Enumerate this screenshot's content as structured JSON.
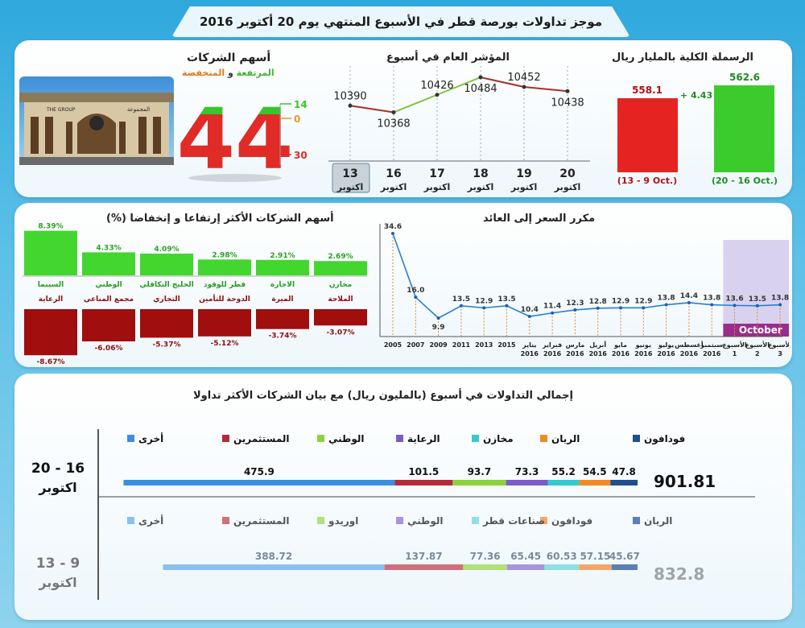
{
  "header": {
    "title": "موجز تداولات بورصة قطر في الأسبوع المنتهي يوم 20 أكتوبر 2016"
  },
  "market_cap": {
    "title": "الرسملة الكلية بالمليار ريال",
    "prev": {
      "value": "558.1",
      "label": "(13 - 9 Oct.)"
    },
    "curr": {
      "value": "562.6",
      "label": "(20 - 16 Oct.)"
    },
    "change": "+ 4.43"
  },
  "index": {
    "title": "المؤشر العام في أسبوع",
    "month": "اكتوبر",
    "days": [
      "13",
      "16",
      "17",
      "18",
      "19",
      "20"
    ],
    "values": [
      "10390",
      "10368",
      "10426",
      "10484",
      "10452",
      "10438"
    ]
  },
  "companies": {
    "title": "أسهم الشركات",
    "subtitle_up": "المرتفعة",
    "subtitle_and": " و ",
    "subtitle_down": "المنخفضة",
    "total": "44",
    "up": "14",
    "flat": "0",
    "down": "30",
    "building_sign": "THE GROUP",
    "building_sign_ar": "المجموعة"
  },
  "movers": {
    "title": "أسهم الشركات الأكثر إرتفاعا و إنخفاضا (%)",
    "gainers": [
      {
        "pct": "8.39%",
        "name": "السينما"
      },
      {
        "pct": "4.33%",
        "name": "الوطني"
      },
      {
        "pct": "4.09%",
        "name": "الخليج التكافلي"
      },
      {
        "pct": "2.98%",
        "name": "قطر للوقود"
      },
      {
        "pct": "2.91%",
        "name": "الاجارة"
      },
      {
        "pct": "2.69%",
        "name": "مخازن"
      }
    ],
    "losers": [
      {
        "pct": "-8.67%",
        "name": "الرعاية"
      },
      {
        "pct": "-6.06%",
        "name": "مجمع المناعي"
      },
      {
        "pct": "-5.37%",
        "name": "التجاري"
      },
      {
        "pct": "-5.12%",
        "name": "الدوحة للتأمين"
      },
      {
        "pct": "-3.74%",
        "name": "الميرة"
      },
      {
        "pct": "-3.07%",
        "name": "الملاحة"
      }
    ]
  },
  "pe": {
    "title": "مكرر السعر إلى العائد",
    "band_label": "October",
    "points": [
      {
        "label": "2005",
        "sub": "",
        "value": "34.6"
      },
      {
        "label": "2007",
        "sub": "",
        "value": "16.0"
      },
      {
        "label": "2009",
        "sub": "",
        "value": "9.9"
      },
      {
        "label": "2011",
        "sub": "",
        "value": "13.5"
      },
      {
        "label": "2013",
        "sub": "",
        "value": "12.9"
      },
      {
        "label": "2015",
        "sub": "",
        "value": "13.5"
      },
      {
        "label": "يناير",
        "sub": "2016",
        "value": "10.4"
      },
      {
        "label": "فبراير",
        "sub": "2016",
        "value": "11.4"
      },
      {
        "label": "مارس",
        "sub": "2016",
        "value": "12.3"
      },
      {
        "label": "أبريل",
        "sub": "2016",
        "value": "12.8"
      },
      {
        "label": "مايو",
        "sub": "2016",
        "value": "12.9"
      },
      {
        "label": "يونيو",
        "sub": "2016",
        "value": "12.9"
      },
      {
        "label": "يوليو",
        "sub": "2016",
        "value": "13.8"
      },
      {
        "label": "أغسطس",
        "sub": "2016",
        "value": "14.4"
      },
      {
        "label": "سبتمبر",
        "sub": "2016",
        "value": "13.8"
      },
      {
        "label": "الأسبوع",
        "sub": "1",
        "value": "13.6"
      },
      {
        "label": "الأسبوع",
        "sub": "2",
        "value": "13.5"
      },
      {
        "label": "الأسبوع",
        "sub": "3",
        "value": "13.8"
      }
    ]
  },
  "trading": {
    "title": "إجمالي التداولات في أسبوع (بالمليون ريال) مع  بيان الشركات الأكثر تداولا",
    "weeks": [
      {
        "label_days": "20 - 16",
        "label_month": "اكتوبر",
        "total": "901.81",
        "legend": [
          {
            "name": "فودافون",
            "color": "#1f4e8c"
          },
          {
            "name": "الريان",
            "color": "#f08a24"
          },
          {
            "name": "مخازن",
            "color": "#37c8d0"
          },
          {
            "name": "الرعاية",
            "color": "#7b5cc8"
          },
          {
            "name": "الوطني",
            "color": "#8cd23c"
          },
          {
            "name": "المستثمرين",
            "color": "#b52a3a"
          },
          {
            "name": "أخرى",
            "color": "#3a8fe0"
          }
        ],
        "values": [
          "47.8",
          "54.5",
          "55.2",
          "73.3",
          "93.7",
          "101.5",
          "475.9"
        ]
      },
      {
        "label_days": "13 - 9",
        "label_month": "اكتوبر",
        "total": "832.8",
        "legend": [
          {
            "name": "الريان",
            "color": "#5a80b8"
          },
          {
            "name": "فودافون",
            "color": "#f2a66a"
          },
          {
            "name": "صناعات قطر",
            "color": "#8ee0e4"
          },
          {
            "name": "الوطني",
            "color": "#a894dc"
          },
          {
            "name": "اوريدو",
            "color": "#b2e07a"
          },
          {
            "name": "المستثمرين",
            "color": "#d0707c"
          },
          {
            "name": "أخرى",
            "color": "#8cc0ec"
          }
        ],
        "values": [
          "45.67",
          "57.15",
          "60.53",
          "65.45",
          "77.36",
          "137.87",
          "388.72"
        ]
      }
    ]
  },
  "chart_data": [
    {
      "type": "bar",
      "title": "الرسملة الكلية بالمليار ريال",
      "categories": [
        "(13 - 9 Oct.)",
        "(20 - 16 Oct.)"
      ],
      "values": [
        558.1,
        562.6
      ]
    },
    {
      "type": "line",
      "title": "المؤشر العام في أسبوع",
      "categories": [
        "13",
        "16",
        "17",
        "18",
        "19",
        "20"
      ],
      "values": [
        10390,
        10368,
        10426,
        10484,
        10452,
        10438
      ]
    },
    {
      "type": "bar",
      "title": "أسهم الشركات الأكثر إرتفاعا و إنخفاضا (%)",
      "series": [
        {
          "name": "",
          "categories": [
            "السينما",
            "الوطني",
            "الخليج التكافلي",
            "قطر للوقود",
            "الاجارة",
            "مخازن"
          ],
          "values": [
            8.39,
            4.33,
            4.09,
            2.98,
            2.91,
            2.69
          ]
        },
        {
          "name": "",
          "categories": [
            "الرعاية",
            "مجمع المناعي",
            "التجاري",
            "الدوحة للتأمين",
            "الميرة",
            "الملاحة"
          ],
          "values": [
            -8.67,
            -6.06,
            -5.37,
            -5.12,
            -3.74,
            -3.07
          ]
        }
      ]
    },
    {
      "type": "line",
      "title": "مكرر السعر إلى العائد",
      "values": [
        34.6,
        16.0,
        9.9,
        13.5,
        12.9,
        13.5,
        10.4,
        11.4,
        12.3,
        12.8,
        12.9,
        12.9,
        13.8,
        14.4,
        13.8,
        13.6,
        13.5,
        13.8
      ]
    },
    {
      "type": "bar",
      "title": "إجمالي التداولات في أسبوع (بالمليون ريال) مع  بيان الشركات الأكثر تداولا",
      "series": [
        {
          "name": "20 - 16 اكتوبر",
          "values": [
            47.8,
            54.5,
            55.2,
            73.3,
            93.7,
            101.5,
            475.9
          ]
        },
        {
          "name": "13 - 9 اكتوبر",
          "values": [
            45.67,
            57.15,
            60.53,
            65.45,
            77.36,
            137.87,
            388.72
          ]
        }
      ]
    }
  ]
}
